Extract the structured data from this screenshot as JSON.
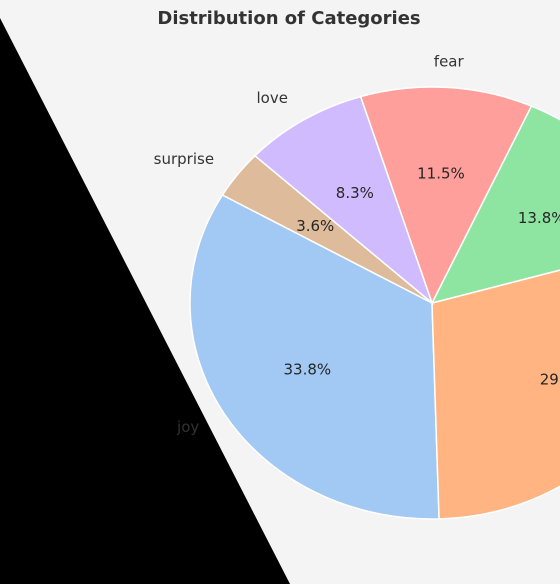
{
  "chart_data": {
    "type": "pie",
    "title": "Distribution of Categories",
    "start_angle_deg": 150,
    "direction": "counterclockwise",
    "slices": [
      {
        "label": "joy",
        "value": 33.8,
        "pct_label": "33.8%",
        "color": "#a1c9f4"
      },
      {
        "label": "",
        "value": 29.0,
        "pct_label": "29",
        "color": "#ffb482"
      },
      {
        "label": "",
        "value": 13.8,
        "pct_label": "13.8%",
        "color": "#8de5a1"
      },
      {
        "label": "fear",
        "value": 11.5,
        "pct_label": "11.5%",
        "color": "#ff9f9b"
      },
      {
        "label": "love",
        "value": 8.3,
        "pct_label": "8.3%",
        "color": "#d0bbff"
      },
      {
        "label": "surprise",
        "value": 3.6,
        "pct_label": "3.6%",
        "color": "#debb9b"
      }
    ]
  },
  "colors": {
    "panel_background": "#f4f4f4",
    "outside_background": "#000000",
    "slice_edge": "#ffffff",
    "text": "#333333"
  }
}
